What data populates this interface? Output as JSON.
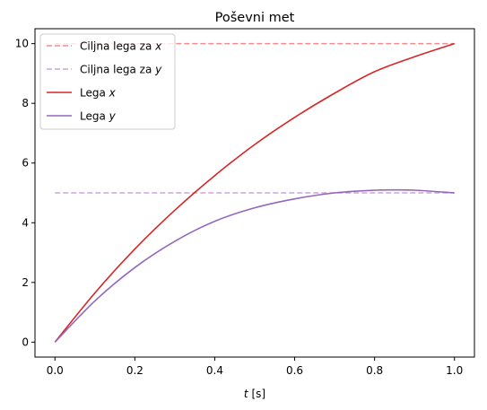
{
  "chart_data": {
    "type": "line",
    "title": "Poševni met",
    "xlabel_var": "t",
    "xlabel_unit": " [s]",
    "ylabel": "",
    "xlim": [
      -0.05,
      1.05
    ],
    "ylim": [
      -0.5,
      10.5
    ],
    "x_ticks": [
      0.0,
      0.2,
      0.4,
      0.6,
      0.8,
      1.0
    ],
    "x_tick_labels": [
      "0.0",
      "0.2",
      "0.4",
      "0.6",
      "0.8",
      "1.0"
    ],
    "y_ticks": [
      0,
      2,
      4,
      6,
      8,
      10
    ],
    "y_tick_labels": [
      "0",
      "2",
      "4",
      "6",
      "8",
      "10"
    ],
    "grid": false,
    "legend_position": "top-left",
    "series": [
      {
        "name": "Ciljna lega za x",
        "legend_text": "Ciljna lega za ",
        "legend_var": "x",
        "color": "#ef8e8e",
        "dash": true,
        "x": [
          0.0,
          1.0
        ],
        "y": [
          10,
          10
        ]
      },
      {
        "name": "Ciljna lega za y",
        "legend_text": "Ciljna lega za ",
        "legend_var": "y",
        "color": "#cba6dc",
        "dash": true,
        "x": [
          0.0,
          1.0
        ],
        "y": [
          5,
          5
        ]
      },
      {
        "name": "Lega x",
        "legend_text": "Lega ",
        "legend_var": "x",
        "color": "#d62728",
        "dash": false,
        "x": [
          0.0,
          0.1,
          0.2,
          0.3,
          0.4,
          0.5,
          0.6,
          0.7,
          0.8,
          0.9,
          1.0
        ],
        "y": [
          0.0,
          1.65,
          3.12,
          4.42,
          5.58,
          6.62,
          7.53,
          8.34,
          9.06,
          9.56,
          10.0
        ]
      },
      {
        "name": "Lega y",
        "legend_text": "Lega ",
        "legend_var": "y",
        "color": "#9467bd",
        "dash": false,
        "x": [
          0.0,
          0.1,
          0.2,
          0.3,
          0.4,
          0.5,
          0.6,
          0.7,
          0.8,
          0.85,
          0.9,
          1.0
        ],
        "y": [
          0.0,
          1.38,
          2.5,
          3.38,
          4.05,
          4.5,
          4.8,
          5.0,
          5.09,
          5.1,
          5.09,
          5.0
        ]
      }
    ]
  }
}
